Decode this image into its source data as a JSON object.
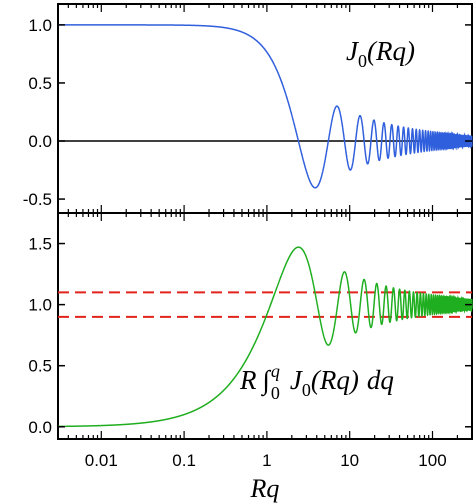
{
  "chart_data": [
    {
      "type": "line",
      "title": "",
      "xlabel": "",
      "ylabel": "",
      "x_scale": "log",
      "xlim": [
        0.003,
        300
      ],
      "ylim": [
        -0.62,
        1.18
      ],
      "yticks": [
        "-0.5",
        "0.0",
        "0.5",
        "1.0"
      ],
      "ytick_values": [
        -0.5,
        0,
        0.5,
        1.0
      ],
      "grid": false,
      "label": {
        "main": "J",
        "sub": "0",
        "arg": "(Rq)"
      },
      "series": [
        {
          "function": "J0(Rq)",
          "color": "#2f5fdc",
          "x": [
            0.003,
            0.01,
            0.03,
            0.1,
            0.2,
            0.3,
            0.5,
            0.7,
            1.0,
            1.5,
            2.0,
            2.405,
            3.0,
            3.832,
            4.5,
            5.52,
            7.016,
            8.654,
            10.17,
            11.79,
            13.32,
            14.93,
            20,
            50,
            100,
            300
          ],
          "y": [
            1.0,
            1.0,
            1.0,
            0.998,
            0.99,
            0.978,
            0.938,
            0.881,
            0.765,
            0.512,
            0.224,
            0.0,
            -0.26,
            -0.403,
            -0.321,
            0.0,
            0.3,
            0.0,
            -0.25,
            0.0,
            0.218,
            0.0,
            0.167,
            -0.056,
            0.037,
            0.03
          ]
        },
        {
          "function": "zero reference line",
          "color": "#000000",
          "x": [
            0.003,
            300
          ],
          "y": [
            0,
            0
          ]
        }
      ]
    },
    {
      "type": "line",
      "title": "",
      "xlabel": "Rq",
      "ylabel": "",
      "x_scale": "log",
      "xlim": [
        0.003,
        300
      ],
      "xticks": [
        "0.01",
        "0.1",
        "1",
        "10",
        "100"
      ],
      "xtick_values": [
        0.01,
        0.1,
        1,
        10,
        100
      ],
      "ylim": [
        -0.1,
        1.75
      ],
      "yticks": [
        "0.0",
        "0.5",
        "1.0",
        "1.5"
      ],
      "ytick_values": [
        0,
        0.5,
        1.0,
        1.5
      ],
      "grid": false,
      "label": {
        "lead": "R",
        "int_upper": "q",
        "int_lower": "0",
        "main": "J",
        "sub": "0",
        "arg": "(Rq)",
        "tail": "dq"
      },
      "series": [
        {
          "function": "R ∫0^q J0(Rq) dq",
          "color": "#1fae1f",
          "x": [
            0.003,
            0.01,
            0.03,
            0.1,
            0.3,
            0.5,
            1.0,
            1.5,
            2.0,
            2.405,
            3.0,
            3.832,
            4.5,
            5.52,
            7.016,
            8.654,
            10.17,
            20,
            50,
            100,
            300
          ],
          "y": [
            0.003,
            0.01,
            0.03,
            0.1,
            0.298,
            0.49,
            0.92,
            1.231,
            1.403,
            1.471,
            1.389,
            1.087,
            0.84,
            0.657,
            0.932,
            1.17,
            1.046,
            1.04,
            0.99,
            1.01,
            1.0
          ]
        },
        {
          "function": "upper bound",
          "style": "dashed",
          "color": "#e0241c",
          "x": [
            0.003,
            300
          ],
          "y": [
            1.1,
            1.1
          ]
        },
        {
          "function": "lower bound",
          "style": "dashed",
          "color": "#e0241c",
          "x": [
            0.003,
            300
          ],
          "y": [
            0.9,
            0.9
          ]
        }
      ]
    }
  ]
}
